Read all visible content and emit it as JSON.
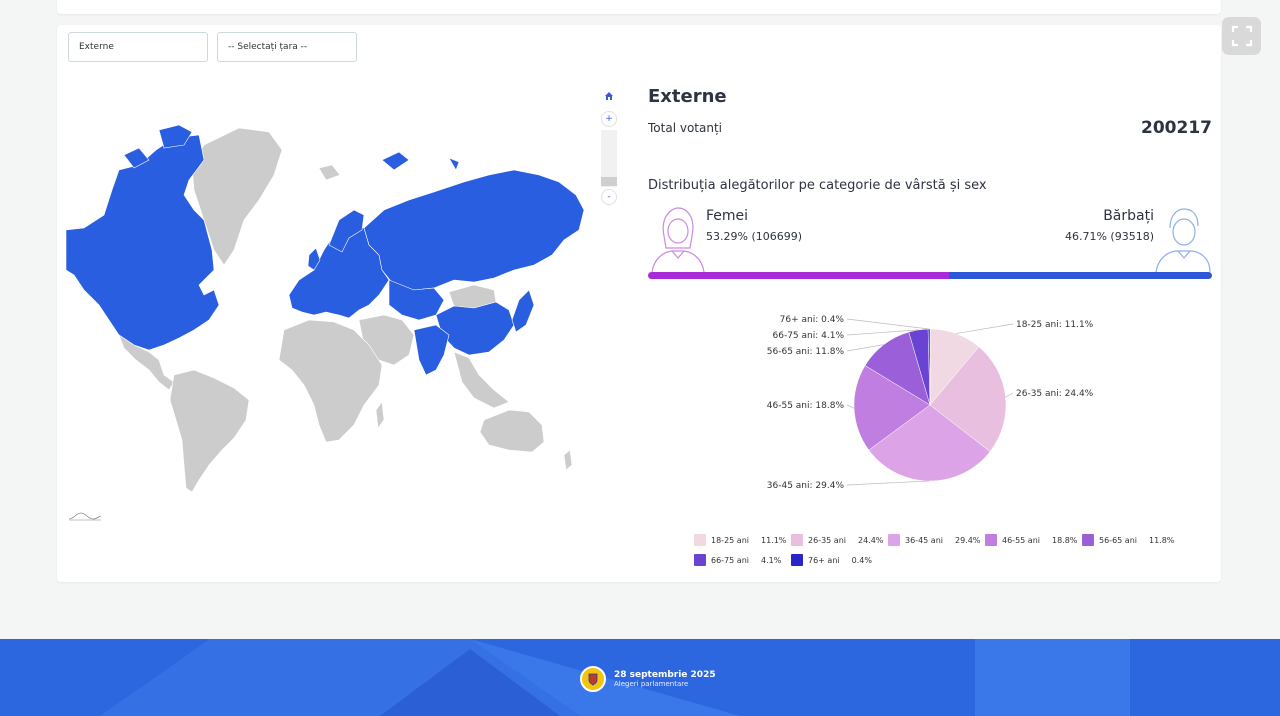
{
  "filters": {
    "region_value": "Externe",
    "country_placeholder": "-- Selectați țara --"
  },
  "map": {
    "highlight_color": "#2a5ee0",
    "base_color": "#cccccc",
    "controls": {
      "zoom_in": "+",
      "zoom_out": "-"
    }
  },
  "stats": {
    "region_title": "Externe",
    "total_label": "Total votanți",
    "total_value": "200217",
    "distribution_title": "Distribuția alegătorilor pe categorie de vârstă și sex",
    "female": {
      "label": "Femei",
      "percent": "53.29%",
      "count": "(106699)",
      "share": 53.29,
      "color": "#a72bd6"
    },
    "male": {
      "label": "Bărbați",
      "percent": "46.71%",
      "count": "(93518)",
      "share": 46.71,
      "color": "#2d57d8"
    }
  },
  "chart_data": {
    "type": "pie",
    "slices": [
      {
        "label": "18-25 ani",
        "value": 11.1,
        "color": "#f1d9e4"
      },
      {
        "label": "26-35 ani",
        "value": 24.4,
        "color": "#e9bfe0"
      },
      {
        "label": "36-45 ani",
        "value": 29.4,
        "color": "#dca3e6"
      },
      {
        "label": "46-55 ani",
        "value": 18.8,
        "color": "#c07ee0"
      },
      {
        "label": "56-65 ani",
        "value": 11.8,
        "color": "#9b5fd9"
      },
      {
        "label": "66-75 ani",
        "value": 4.1,
        "color": "#6a43d2"
      },
      {
        "label": "76+ ani",
        "value": 0.4,
        "color": "#2b25c8"
      }
    ],
    "legend_placement": "bottom"
  },
  "footer": {
    "date": "28 septembrie 2025",
    "subtitle": "Alegeri parlamentare",
    "logo": "cec-seal-icon"
  }
}
